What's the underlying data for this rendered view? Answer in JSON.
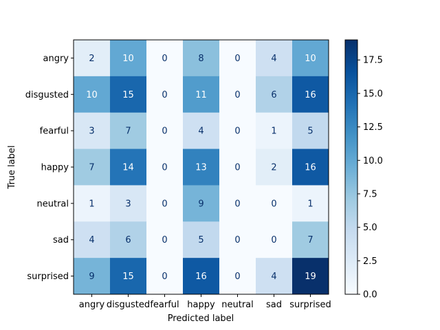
{
  "chart_data": {
    "type": "heatmap",
    "x_categories": [
      "angry",
      "disgusted",
      "fearful",
      "happy",
      "neutral",
      "sad",
      "surprised"
    ],
    "y_categories": [
      "angry",
      "disgusted",
      "fearful",
      "happy",
      "neutral",
      "sad",
      "surprised"
    ],
    "values": [
      [
        2,
        10,
        0,
        8,
        0,
        4,
        10
      ],
      [
        10,
        15,
        0,
        11,
        0,
        6,
        16
      ],
      [
        3,
        7,
        0,
        4,
        0,
        1,
        5
      ],
      [
        7,
        14,
        0,
        13,
        0,
        2,
        16
      ],
      [
        1,
        3,
        0,
        9,
        0,
        0,
        1
      ],
      [
        4,
        6,
        0,
        5,
        0,
        0,
        7
      ],
      [
        9,
        15,
        0,
        16,
        0,
        4,
        19
      ]
    ],
    "xlabel": "Predicted label",
    "ylabel": "True label",
    "colormap": "Blues",
    "colorbar": {
      "min": 0,
      "max": 19,
      "ticks": [
        0,
        2.5,
        5,
        7.5,
        10,
        12.5,
        15,
        17.5
      ],
      "tick_labels": [
        "0.0",
        "2.5",
        "5.0",
        "7.5",
        "10.0",
        "12.5",
        "15.0",
        "17.5"
      ]
    },
    "text_color_dark": "#08306b",
    "text_color_light": "#ffffff"
  }
}
